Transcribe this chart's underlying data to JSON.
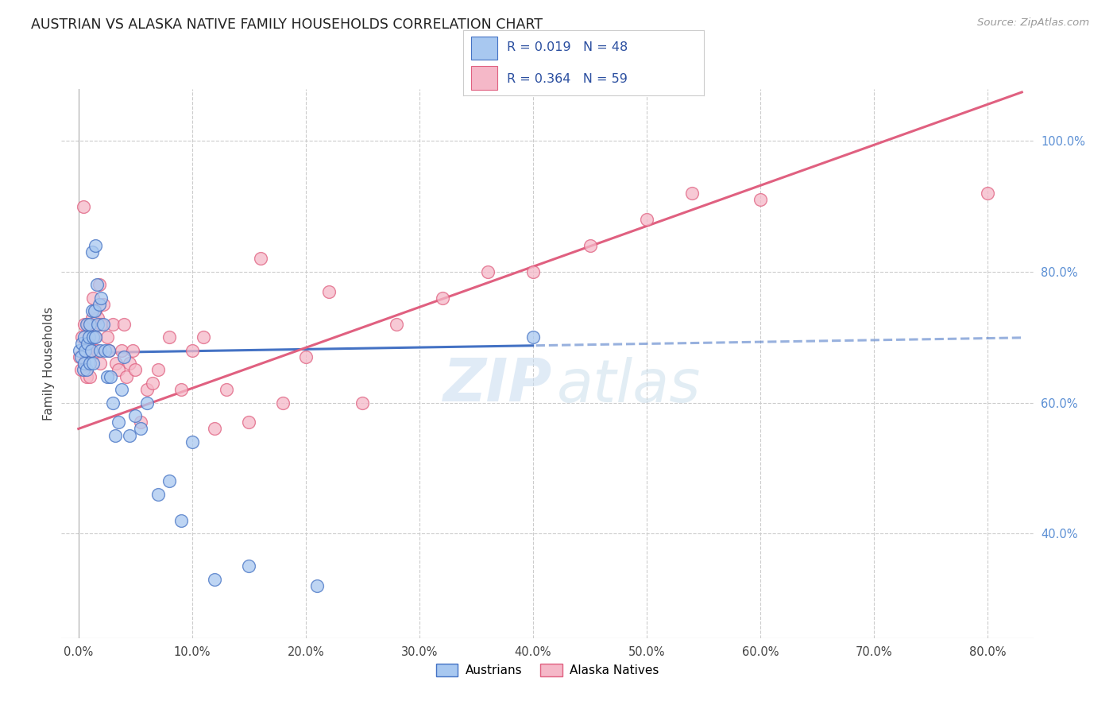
{
  "title": "AUSTRIAN VS ALASKA NATIVE FAMILY HOUSEHOLDS CORRELATION CHART",
  "source": "Source: ZipAtlas.com",
  "ylabel": "Family Households",
  "x_ticks": [
    "0.0%",
    "10.0%",
    "20.0%",
    "30.0%",
    "40.0%",
    "50.0%",
    "60.0%",
    "70.0%",
    "80.0%"
  ],
  "x_tick_vals": [
    0.0,
    0.1,
    0.2,
    0.3,
    0.4,
    0.5,
    0.6,
    0.7,
    0.8
  ],
  "y_ticks_right": [
    "40.0%",
    "60.0%",
    "80.0%",
    "100.0%"
  ],
  "y_tick_vals": [
    0.4,
    0.6,
    0.8,
    1.0
  ],
  "xlim": [
    -0.015,
    0.84
  ],
  "ylim": [
    0.24,
    1.08
  ],
  "color_blue": "#A8C8F0",
  "color_pink": "#F5B8C8",
  "color_blue_line": "#4472C4",
  "color_pink_line": "#E06080",
  "color_text_blue": "#2B4FA0",
  "watermark_zip": "ZIP",
  "watermark_atlas": "atlas",
  "legend_label_blue": "Austrians",
  "legend_label_pink": "Alaska Natives",
  "blue_trend_solid_end": 0.4,
  "blue_trend_start_y": 0.676,
  "blue_trend_slope": 0.028,
  "pink_trend_start_y": 0.56,
  "pink_trend_slope": 0.62,
  "austrians_x": [
    0.001,
    0.002,
    0.003,
    0.004,
    0.005,
    0.005,
    0.006,
    0.007,
    0.007,
    0.008,
    0.009,
    0.01,
    0.01,
    0.011,
    0.012,
    0.012,
    0.013,
    0.013,
    0.014,
    0.015,
    0.015,
    0.016,
    0.017,
    0.018,
    0.019,
    0.02,
    0.022,
    0.023,
    0.025,
    0.027,
    0.028,
    0.03,
    0.032,
    0.035,
    0.038,
    0.04,
    0.045,
    0.05,
    0.055,
    0.06,
    0.07,
    0.08,
    0.09,
    0.1,
    0.12,
    0.15,
    0.21,
    0.4
  ],
  "austrians_y": [
    0.68,
    0.67,
    0.69,
    0.65,
    0.7,
    0.66,
    0.68,
    0.72,
    0.65,
    0.69,
    0.7,
    0.66,
    0.72,
    0.68,
    0.83,
    0.74,
    0.7,
    0.66,
    0.74,
    0.7,
    0.84,
    0.78,
    0.72,
    0.75,
    0.68,
    0.76,
    0.72,
    0.68,
    0.64,
    0.68,
    0.64,
    0.6,
    0.55,
    0.57,
    0.62,
    0.67,
    0.55,
    0.58,
    0.56,
    0.6,
    0.46,
    0.48,
    0.42,
    0.54,
    0.33,
    0.35,
    0.32,
    0.7
  ],
  "alaska_x": [
    0.001,
    0.002,
    0.003,
    0.004,
    0.005,
    0.005,
    0.006,
    0.007,
    0.008,
    0.009,
    0.01,
    0.01,
    0.011,
    0.012,
    0.013,
    0.014,
    0.015,
    0.016,
    0.017,
    0.018,
    0.019,
    0.02,
    0.022,
    0.025,
    0.027,
    0.03,
    0.033,
    0.035,
    0.038,
    0.04,
    0.042,
    0.045,
    0.048,
    0.05,
    0.055,
    0.06,
    0.065,
    0.07,
    0.08,
    0.09,
    0.1,
    0.11,
    0.12,
    0.13,
    0.15,
    0.16,
    0.18,
    0.2,
    0.22,
    0.25,
    0.28,
    0.32,
    0.36,
    0.4,
    0.45,
    0.5,
    0.54,
    0.6,
    0.8
  ],
  "alaska_y": [
    0.67,
    0.65,
    0.7,
    0.9,
    0.66,
    0.72,
    0.68,
    0.64,
    0.72,
    0.69,
    0.64,
    0.72,
    0.68,
    0.73,
    0.76,
    0.7,
    0.74,
    0.68,
    0.73,
    0.78,
    0.66,
    0.72,
    0.75,
    0.7,
    0.68,
    0.72,
    0.66,
    0.65,
    0.68,
    0.72,
    0.64,
    0.66,
    0.68,
    0.65,
    0.57,
    0.62,
    0.63,
    0.65,
    0.7,
    0.62,
    0.68,
    0.7,
    0.56,
    0.62,
    0.57,
    0.82,
    0.6,
    0.67,
    0.77,
    0.6,
    0.72,
    0.76,
    0.8,
    0.8,
    0.84,
    0.88,
    0.92,
    0.91,
    0.92
  ]
}
